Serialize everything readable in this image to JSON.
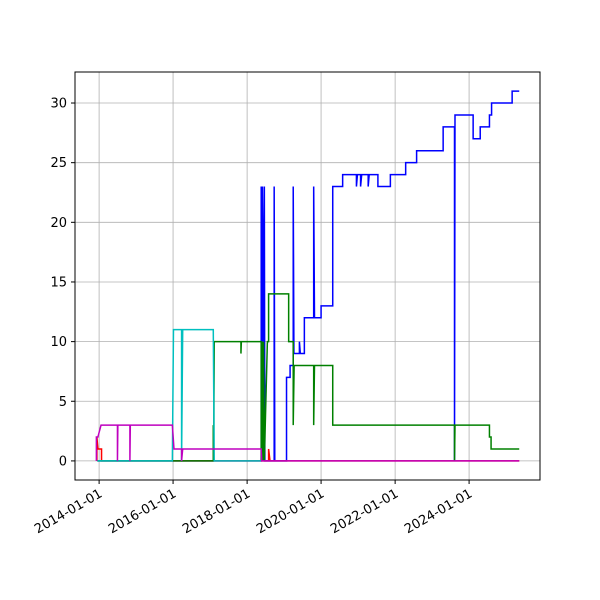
{
  "chart_data": {
    "type": "line",
    "grid": true,
    "xlim": [
      "2013-05-08",
      "2025-12-01"
    ],
    "ylim": [
      -1.6,
      32.6
    ],
    "xticks": [
      "2014-01-01",
      "2016-01-01",
      "2018-01-01",
      "2020-01-01",
      "2022-01-01",
      "2024-01-01"
    ],
    "yticks": [
      0,
      5,
      10,
      15,
      20,
      25,
      30
    ],
    "series": [
      {
        "color": "#0000ff",
        "x": [
          "2013-12-15",
          "2018-05-20",
          "2018-05-20",
          "2018-05-25",
          "2018-06-01",
          "2018-06-10",
          "2018-06-20",
          "2018-06-25",
          "2018-09-25",
          "2018-09-25",
          "2018-10-01",
          "2019-01-25",
          "2019-01-25",
          "2019-03-01",
          "2019-03-01",
          "2019-04-01",
          "2019-04-01",
          "2019-04-08",
          "2019-06-01",
          "2019-06-01",
          "2019-06-10",
          "2019-07-20",
          "2019-07-20",
          "2019-10-20",
          "2019-10-20",
          "2019-10-28",
          "2020-01-01",
          "2020-01-01",
          "2020-04-25",
          "2020-04-25",
          "2020-08-01",
          "2020-08-01",
          "2020-12-15",
          "2020-12-15",
          "2020-12-25",
          "2021-01-25",
          "2021-01-25",
          "2021-02-05",
          "2021-04-10",
          "2021-04-10",
          "2021-04-20",
          "2021-07-15",
          "2021-07-15",
          "2021-11-15",
          "2021-11-15",
          "2022-04-15",
          "2022-04-15",
          "2022-08-01",
          "2022-08-01",
          "2023-04-20",
          "2023-04-20",
          "2023-08-10",
          "2023-08-10",
          "2023-08-15",
          "2024-02-10",
          "2024-02-10",
          "2024-04-20",
          "2024-04-20",
          "2024-07-20",
          "2024-07-20",
          "2024-08-10",
          "2024-08-10",
          "2025-03-01",
          "2025-03-01",
          "2025-05-10"
        ],
        "values": [
          0,
          0,
          23,
          3,
          23,
          10,
          23,
          0,
          0,
          23,
          0,
          0,
          7,
          7,
          8,
          8,
          23,
          9,
          9,
          10,
          9,
          9,
          12,
          12,
          23,
          12,
          12,
          13,
          13,
          23,
          23,
          24,
          24,
          23,
          24,
          24,
          23,
          24,
          24,
          23,
          24,
          24,
          23,
          23,
          24,
          24,
          25,
          25,
          26,
          26,
          28,
          28,
          0,
          29,
          29,
          27,
          27,
          28,
          28,
          29,
          29,
          30,
          30,
          31,
          31
        ]
      },
      {
        "color": "#ff0000",
        "x": [
          "2013-12-10",
          "2013-12-10",
          "2013-12-20",
          "2014-01-25",
          "2014-01-25",
          "2018-08-01",
          "2018-08-01",
          "2018-08-15",
          "2025-05-10"
        ],
        "values": [
          0,
          2,
          1,
          1,
          0,
          0,
          1,
          0,
          0
        ]
      },
      {
        "color": "#008000",
        "x": [
          "2013-12-15",
          "2017-02-01",
          "2017-02-01",
          "2017-02-05",
          "2017-02-10",
          "2017-11-01",
          "2017-11-01",
          "2017-11-05",
          "2018-05-20",
          "2018-05-20",
          "2018-05-28",
          "2018-06-05",
          "2018-06-12",
          "2018-06-20",
          "2018-07-20",
          "2018-08-01",
          "2018-08-01",
          "2019-02-15",
          "2019-02-15",
          "2019-04-01",
          "2019-04-01",
          "2019-04-10",
          "2019-10-20",
          "2019-10-20",
          "2019-10-28",
          "2020-04-25",
          "2020-04-25",
          "2023-08-10",
          "2023-08-10",
          "2023-08-15",
          "2024-07-20",
          "2024-07-20",
          "2024-08-05",
          "2024-08-05",
          "2025-05-10"
        ],
        "values": [
          0,
          0,
          3,
          0,
          10,
          10,
          9,
          10,
          10,
          0,
          10,
          0,
          10,
          0,
          10,
          10,
          14,
          14,
          10,
          10,
          3,
          8,
          8,
          3,
          8,
          8,
          3,
          3,
          0,
          3,
          3,
          2,
          2,
          1,
          1
        ]
      },
      {
        "color": "#00bfbf",
        "x": [
          "2013-12-15",
          "2015-12-25",
          "2016-01-05",
          "2016-03-25",
          "2016-03-25",
          "2016-04-05",
          "2017-02-01",
          "2017-02-10",
          "2018-05-20"
        ],
        "values": [
          0,
          0,
          11,
          11,
          0,
          11,
          11,
          0,
          0
        ]
      },
      {
        "color": "#bf00bf",
        "x": [
          "2013-12-05",
          "2013-12-05",
          "2013-12-20",
          "2014-01-20",
          "2014-07-01",
          "2014-07-01",
          "2014-07-05",
          "2014-11-01",
          "2014-11-01",
          "2014-11-05",
          "2015-12-25",
          "2016-01-10",
          "2016-03-25",
          "2016-03-25",
          "2016-04-05",
          "2018-05-20",
          "2018-05-25",
          "2018-07-01",
          "2025-05-10"
        ],
        "values": [
          0,
          2,
          2,
          3,
          3,
          0,
          3,
          3,
          0,
          3,
          3,
          1,
          1,
          0,
          1,
          1,
          0,
          0,
          0
        ]
      }
    ]
  }
}
